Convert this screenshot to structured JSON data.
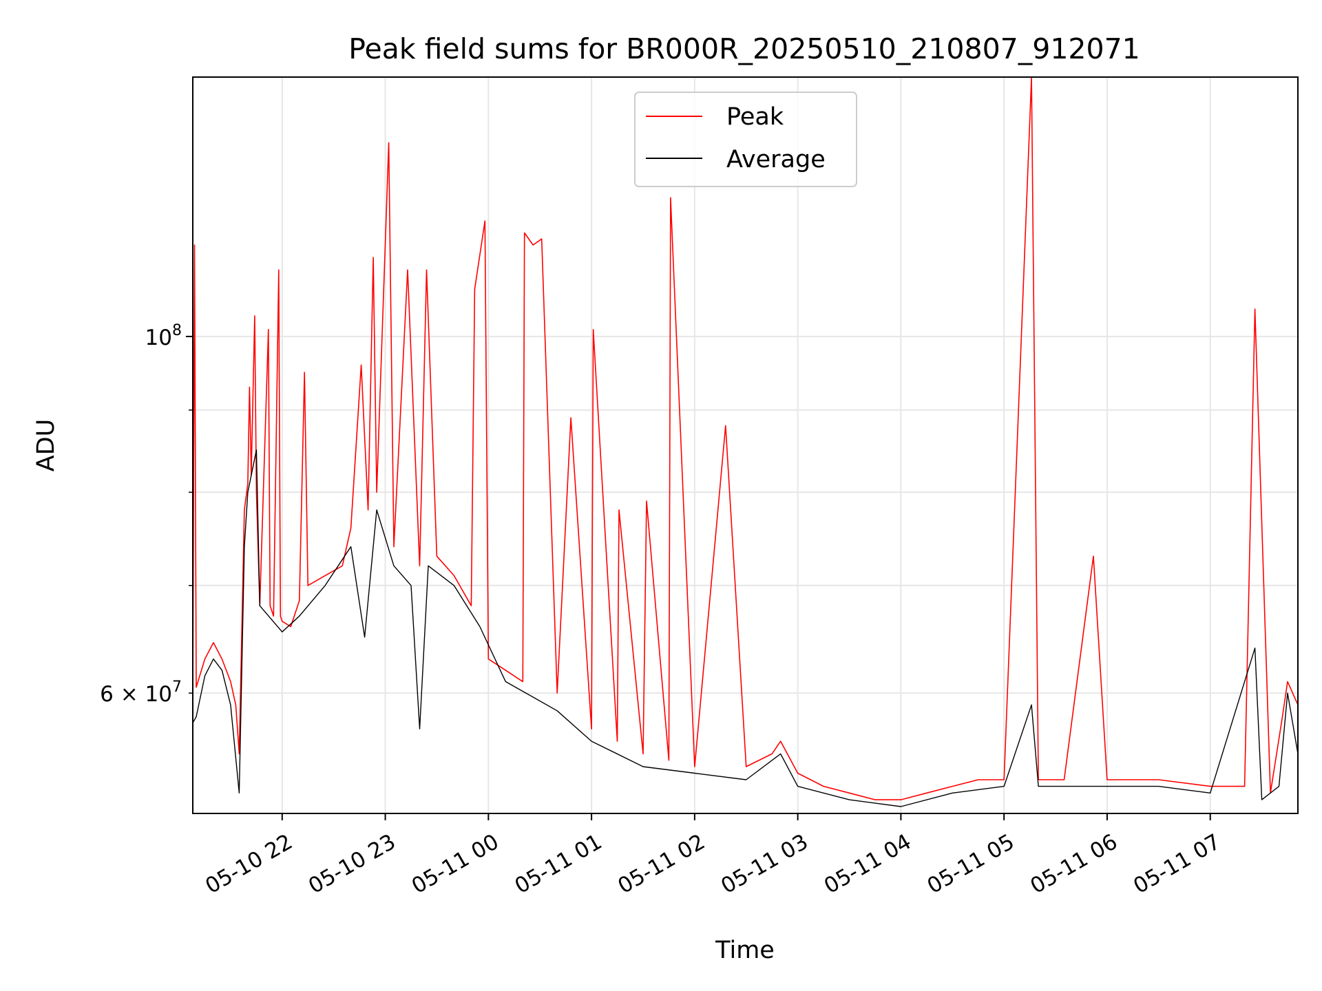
{
  "chart_data": {
    "type": "line",
    "title": "Peak field sums for BR000R_20250510_210807_912071",
    "xlabel": "Time",
    "ylabel": "ADU",
    "x_unit": "datetime",
    "xlim": [
      "2025-05-10 21:08",
      "2025-05-11 07:51"
    ],
    "ylim": [
      50500000,
      145000000
    ],
    "yscale": "log",
    "grid": true,
    "legend_position": "top-center",
    "x_ticks": [
      {
        "value": "2025-05-10 22:00",
        "label": "05-10 22"
      },
      {
        "value": "2025-05-10 23:00",
        "label": "05-10 23"
      },
      {
        "value": "2025-05-11 00:00",
        "label": "05-11 00"
      },
      {
        "value": "2025-05-11 01:00",
        "label": "05-11 01"
      },
      {
        "value": "2025-05-11 02:00",
        "label": "05-11 02"
      },
      {
        "value": "2025-05-11 03:00",
        "label": "05-11 03"
      },
      {
        "value": "2025-05-11 04:00",
        "label": "05-11 04"
      },
      {
        "value": "2025-05-11 05:00",
        "label": "05-11 05"
      },
      {
        "value": "2025-05-11 06:00",
        "label": "05-11 06"
      },
      {
        "value": "2025-05-11 07:00",
        "label": "05-11 07"
      }
    ],
    "y_major_ticks": [
      {
        "value": 100000000,
        "base": "10",
        "exp": "8"
      }
    ],
    "y_minor_ticks": [
      {
        "value": 60000000,
        "mant": "6",
        "base": "10",
        "exp": "7"
      },
      {
        "value": 70000000
      },
      {
        "value": 80000000
      },
      {
        "value": 90000000
      }
    ],
    "series": [
      {
        "name": "Peak",
        "color": "#ff0000",
        "points": [
          [
            "2025-05-10 21:08",
            59500000
          ],
          [
            "2025-05-10 21:09",
            114000000
          ],
          [
            "2025-05-10 21:10",
            60500000
          ],
          [
            "2025-05-10 21:15",
            63000000
          ],
          [
            "2025-05-10 21:20",
            64500000
          ],
          [
            "2025-05-10 21:25",
            63000000
          ],
          [
            "2025-05-10 21:30",
            61000000
          ],
          [
            "2025-05-10 21:33",
            59000000
          ],
          [
            "2025-05-10 21:35",
            55000000
          ],
          [
            "2025-05-10 21:38",
            78000000
          ],
          [
            "2025-05-10 21:40",
            81000000
          ],
          [
            "2025-05-10 21:41",
            93000000
          ],
          [
            "2025-05-10 21:42",
            82000000
          ],
          [
            "2025-05-10 21:44",
            103000000
          ],
          [
            "2025-05-10 21:45",
            80000000
          ],
          [
            "2025-05-10 21:47",
            68000000
          ],
          [
            "2025-05-10 21:55",
            67000000
          ],
          [
            "2025-05-10 22:00",
            66500000
          ],
          [
            "2025-05-10 21:52",
            101000000
          ],
          [
            "2025-05-10 21:53",
            68000000
          ],
          [
            "2025-05-10 21:58",
            110000000
          ],
          [
            "2025-05-10 21:59",
            67000000
          ],
          [
            "2025-05-10 22:05",
            66000000
          ],
          [
            "2025-05-10 22:10",
            68500000
          ],
          [
            "2025-05-10 22:13",
            95000000
          ],
          [
            "2025-05-10 22:15",
            70000000
          ],
          [
            "2025-05-10 22:25",
            71000000
          ],
          [
            "2025-05-10 22:35",
            72000000
          ],
          [
            "2025-05-10 22:40",
            76000000
          ],
          [
            "2025-05-10 22:46",
            96000000
          ],
          [
            "2025-05-10 22:50",
            78000000
          ],
          [
            "2025-05-10 22:53",
            112000000
          ],
          [
            "2025-05-10 22:55",
            80000000
          ],
          [
            "2025-05-10 23:02",
            132000000
          ],
          [
            "2025-05-10 23:05",
            74000000
          ],
          [
            "2025-05-10 23:13",
            110000000
          ],
          [
            "2025-05-10 23:20",
            72000000
          ],
          [
            "2025-05-10 23:24",
            110000000
          ],
          [
            "2025-05-10 23:30",
            73000000
          ],
          [
            "2025-05-10 23:40",
            71000000
          ],
          [
            "2025-05-10 23:50",
            68000000
          ],
          [
            "2025-05-10 23:52",
            107000000
          ],
          [
            "2025-05-10 23:58",
            118000000
          ],
          [
            "2025-05-11 00:00",
            63000000
          ],
          [
            "2025-05-11 00:10",
            62000000
          ],
          [
            "2025-05-11 00:20",
            61000000
          ],
          [
            "2025-05-11 00:21",
            116000000
          ],
          [
            "2025-05-11 00:26",
            114000000
          ],
          [
            "2025-05-11 00:31",
            115000000
          ],
          [
            "2025-05-11 00:40",
            60000000
          ],
          [
            "2025-05-11 00:48",
            89000000
          ],
          [
            "2025-05-11 01:00",
            57000000
          ],
          [
            "2025-05-11 01:01",
            101000000
          ],
          [
            "2025-05-11 01:15",
            56000000
          ],
          [
            "2025-05-11 01:16",
            78000000
          ],
          [
            "2025-05-11 01:30",
            55000000
          ],
          [
            "2025-05-11 01:32",
            79000000
          ],
          [
            "2025-05-11 01:45",
            54500000
          ],
          [
            "2025-05-11 01:46",
            122000000
          ],
          [
            "2025-05-11 02:00",
            54000000
          ],
          [
            "2025-05-11 02:18",
            88000000
          ],
          [
            "2025-05-11 02:30",
            54000000
          ],
          [
            "2025-05-11 02:45",
            55000000
          ],
          [
            "2025-05-11 02:50",
            56000000
          ],
          [
            "2025-05-11 03:00",
            53500000
          ],
          [
            "2025-05-11 03:15",
            52500000
          ],
          [
            "2025-05-11 03:30",
            52000000
          ],
          [
            "2025-05-11 03:45",
            51500000
          ],
          [
            "2025-05-11 04:00",
            51500000
          ],
          [
            "2025-05-11 04:15",
            52000000
          ],
          [
            "2025-05-11 04:30",
            52500000
          ],
          [
            "2025-05-11 04:45",
            53000000
          ],
          [
            "2025-05-11 05:00",
            53000000
          ],
          [
            "2025-05-11 05:16",
            145000000
          ],
          [
            "2025-05-11 05:20",
            53000000
          ],
          [
            "2025-05-11 05:35",
            53000000
          ],
          [
            "2025-05-11 05:52",
            73000000
          ],
          [
            "2025-05-11 06:00",
            53000000
          ],
          [
            "2025-05-11 06:30",
            53000000
          ],
          [
            "2025-05-11 07:00",
            52500000
          ],
          [
            "2025-05-11 07:20",
            52500000
          ],
          [
            "2025-05-11 07:26",
            104000000
          ],
          [
            "2025-05-11 07:35",
            52000000
          ],
          [
            "2025-05-11 07:42",
            58000000
          ],
          [
            "2025-05-11 07:45",
            61000000
          ],
          [
            "2025-05-11 07:51",
            59000000
          ]
        ]
      },
      {
        "name": "Average",
        "color": "#000000",
        "points": [
          [
            "2025-05-10 21:08",
            57500000
          ],
          [
            "2025-05-10 21:10",
            58000000
          ],
          [
            "2025-05-10 21:15",
            61500000
          ],
          [
            "2025-05-10 21:20",
            63000000
          ],
          [
            "2025-05-10 21:25",
            62000000
          ],
          [
            "2025-05-10 21:30",
            59000000
          ],
          [
            "2025-05-10 21:35",
            52000000
          ],
          [
            "2025-05-10 21:38",
            74000000
          ],
          [
            "2025-05-10 21:40",
            80000000
          ],
          [
            "2025-05-10 21:45",
            85000000
          ],
          [
            "2025-05-10 21:47",
            68000000
          ],
          [
            "2025-05-10 22:00",
            65500000
          ],
          [
            "2025-05-10 22:10",
            67000000
          ],
          [
            "2025-05-10 22:25",
            70000000
          ],
          [
            "2025-05-10 22:40",
            74000000
          ],
          [
            "2025-05-10 22:48",
            65000000
          ],
          [
            "2025-05-10 22:55",
            78000000
          ],
          [
            "2025-05-10 23:05",
            72000000
          ],
          [
            "2025-05-10 23:15",
            70000000
          ],
          [
            "2025-05-10 23:20",
            57000000
          ],
          [
            "2025-05-10 23:25",
            72000000
          ],
          [
            "2025-05-10 23:40",
            70000000
          ],
          [
            "2025-05-10 23:55",
            66000000
          ],
          [
            "2025-05-11 00:10",
            61000000
          ],
          [
            "2025-05-11 00:40",
            58500000
          ],
          [
            "2025-05-11 01:00",
            56000000
          ],
          [
            "2025-05-11 01:30",
            54000000
          ],
          [
            "2025-05-11 02:00",
            53500000
          ],
          [
            "2025-05-11 02:30",
            53000000
          ],
          [
            "2025-05-11 02:50",
            55000000
          ],
          [
            "2025-05-11 03:00",
            52500000
          ],
          [
            "2025-05-11 03:30",
            51500000
          ],
          [
            "2025-05-11 04:00",
            51000000
          ],
          [
            "2025-05-11 04:30",
            52000000
          ],
          [
            "2025-05-11 05:00",
            52500000
          ],
          [
            "2025-05-11 05:16",
            59000000
          ],
          [
            "2025-05-11 05:20",
            52500000
          ],
          [
            "2025-05-11 06:00",
            52500000
          ],
          [
            "2025-05-11 06:30",
            52500000
          ],
          [
            "2025-05-11 07:00",
            52000000
          ],
          [
            "2025-05-11 07:26",
            64000000
          ],
          [
            "2025-05-11 07:30",
            51500000
          ],
          [
            "2025-05-11 07:40",
            52500000
          ],
          [
            "2025-05-11 07:45",
            60000000
          ],
          [
            "2025-05-11 07:51",
            55000000
          ]
        ]
      }
    ]
  }
}
